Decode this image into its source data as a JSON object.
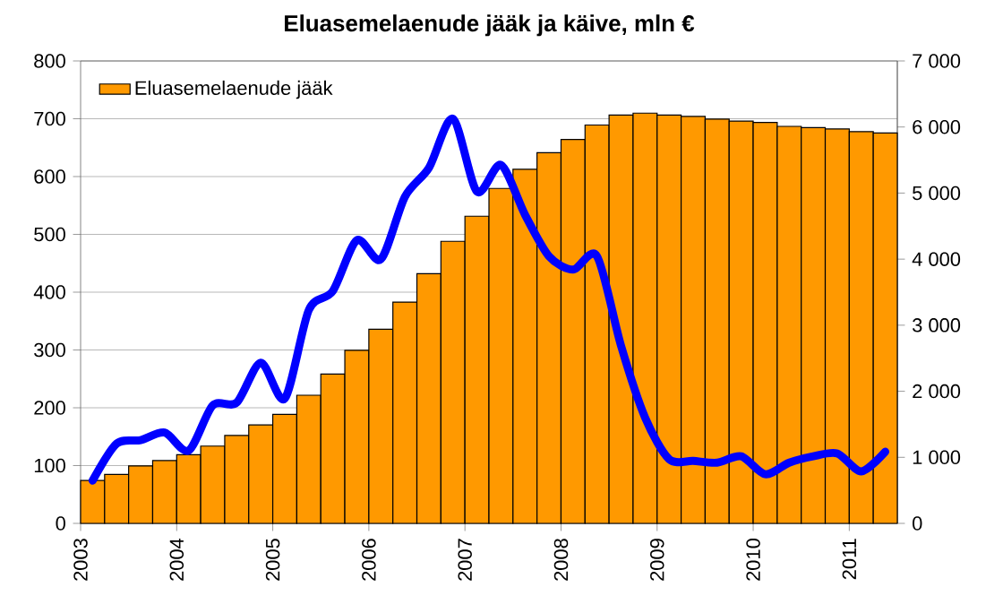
{
  "chart_data": {
    "type": "bar",
    "title": "Eluasemelaenude jääk ja käive, mln €",
    "x": [
      2003.125,
      2003.375,
      2003.625,
      2003.875,
      2004.125,
      2004.375,
      2004.625,
      2004.875,
      2005.125,
      2005.375,
      2005.625,
      2005.875,
      2006.125,
      2006.375,
      2006.625,
      2006.875,
      2007.125,
      2007.375,
      2007.625,
      2007.875,
      2008.125,
      2008.375,
      2008.625,
      2008.875,
      2009.125,
      2009.375,
      2009.625,
      2009.875,
      2010.125,
      2010.375,
      2010.625,
      2010.875,
      2011.125,
      2011.375
    ],
    "series": [
      {
        "name": "Eluasemelaenude jääk",
        "axis": "y2",
        "color": "#ff9900",
        "values": [
          650,
          740,
          870,
          950,
          1040,
          1170,
          1330,
          1490,
          1650,
          1940,
          2260,
          2620,
          2940,
          3350,
          3780,
          4270,
          4650,
          5070,
          5360,
          5610,
          5810,
          6030,
          6180,
          6210,
          6180,
          6160,
          6120,
          6090,
          6070,
          6010,
          5990,
          5970,
          5930,
          5910
        ]
      },
      {
        "type": "line",
        "axis": "y",
        "color": "#0000ff",
        "values": [
          74,
          138,
          144,
          157,
          126,
          204,
          209,
          278,
          216,
          369,
          402,
          490,
          457,
          565,
          615,
          700,
          574,
          620,
          534,
          462,
          439,
          462,
          307,
          183,
          111,
          108,
          105,
          116,
          85,
          105,
          116,
          121,
          90,
          124
        ]
      }
    ],
    "xlim": [
      2003,
      2011.5
    ],
    "xticks": [
      2003,
      2004,
      2005,
      2006,
      2007,
      2008,
      2009,
      2010,
      2011
    ],
    "ylim": [
      0,
      800
    ],
    "yticks": [
      0,
      100,
      200,
      300,
      400,
      500,
      600,
      700,
      800
    ],
    "y2lim": [
      0,
      7000
    ],
    "y2ticks": [
      {
        "value": 0,
        "label": "0"
      },
      {
        "value": 1000,
        "label": "1 000"
      },
      {
        "value": 2000,
        "label": "2 000"
      },
      {
        "value": 3000,
        "label": "3 000"
      },
      {
        "value": 4000,
        "label": "4 000"
      },
      {
        "value": 5000,
        "label": "5 000"
      },
      {
        "value": 6000,
        "label": "6 000"
      },
      {
        "value": 7000,
        "label": "7 000"
      }
    ],
    "grid": "y",
    "legend": "top left"
  }
}
